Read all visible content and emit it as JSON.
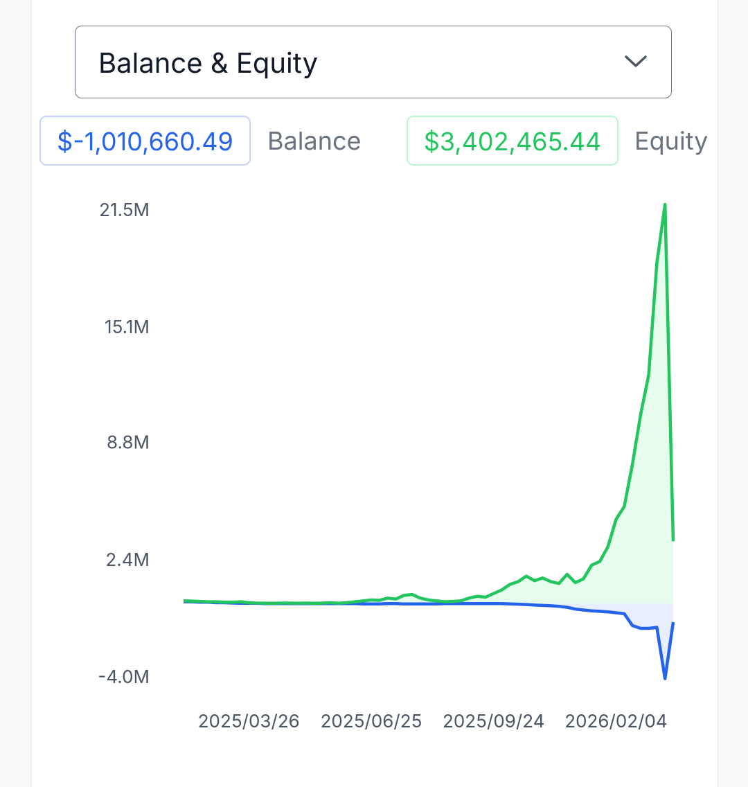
{
  "chart_data": {
    "type": "line",
    "selector": "Balance & Equity",
    "summary": [
      {
        "value_label": "$-1,010,660.49",
        "name": "Balance",
        "color": "#2563eb",
        "border": "#c7d2fe"
      },
      {
        "value_label": "$3,402,465.44",
        "name": "Equity",
        "color": "#22c55e",
        "border": "#bbf7d0"
      }
    ],
    "categories": [
      null,
      null,
      null,
      null,
      null,
      null,
      null,
      null,
      "2025/03/26",
      null,
      null,
      null,
      null,
      null,
      null,
      null,
      null,
      null,
      null,
      null,
      null,
      null,
      null,
      "2025/06/25",
      null,
      null,
      null,
      null,
      null,
      null,
      null,
      null,
      null,
      null,
      null,
      null,
      null,
      null,
      "2025/09/24",
      null,
      null,
      null,
      null,
      null,
      null,
      null,
      null,
      null,
      null,
      null,
      null,
      null,
      null,
      "2026/02/04",
      null,
      null,
      null,
      null,
      null,
      null,
      null
    ],
    "series": [
      {
        "name": "Balance",
        "color": "#2563eb",
        "fill": "#e0e7ff",
        "values": [
          100000,
          100000,
          80000,
          80000,
          50000,
          50000,
          30000,
          20000,
          20000,
          20000,
          0,
          0,
          0,
          0,
          0,
          0,
          0,
          0,
          0,
          0,
          0,
          0,
          -20000,
          -20000,
          -20000,
          0,
          0,
          -20000,
          -20000,
          -20000,
          -20000,
          -20000,
          0,
          0,
          0,
          0,
          0,
          0,
          0,
          0,
          -20000,
          -30000,
          -50000,
          -80000,
          -100000,
          -120000,
          -150000,
          -200000,
          -300000,
          -350000,
          -400000,
          -420000,
          -450000,
          -500000,
          -550000,
          -1200000,
          -1350000,
          -1350000,
          -1300000,
          -4100000,
          -1010660.49
        ]
      },
      {
        "name": "Equity",
        "color": "#22c55e",
        "fill": "#dcfce7",
        "values": [
          150000,
          140000,
          120000,
          100000,
          100000,
          80000,
          80000,
          100000,
          50000,
          30000,
          20000,
          20000,
          30000,
          30000,
          20000,
          30000,
          20000,
          30000,
          50000,
          20000,
          50000,
          100000,
          150000,
          200000,
          180000,
          300000,
          250000,
          450000,
          500000,
          300000,
          200000,
          150000,
          100000,
          120000,
          150000,
          300000,
          400000,
          350000,
          550000,
          750000,
          1050000,
          1200000,
          1500000,
          1250000,
          1400000,
          1200000,
          1100000,
          1600000,
          1150000,
          1350000,
          2100000,
          2300000,
          3100000,
          4600000,
          5300000,
          7600000,
          10300000,
          12500000,
          18600000,
          21800000,
          3402465.44
        ]
      }
    ],
    "ylim": [
      -4000000,
      21500000
    ],
    "yticks": [
      {
        "value": -4000000,
        "label": "-4.0M"
      },
      {
        "value": 2400000,
        "label": "2.4M"
      },
      {
        "value": 8800000,
        "label": "8.8M"
      },
      {
        "value": 15100000,
        "label": "15.1M"
      },
      {
        "value": 21500000,
        "label": "21.5M"
      }
    ],
    "grid": false
  }
}
